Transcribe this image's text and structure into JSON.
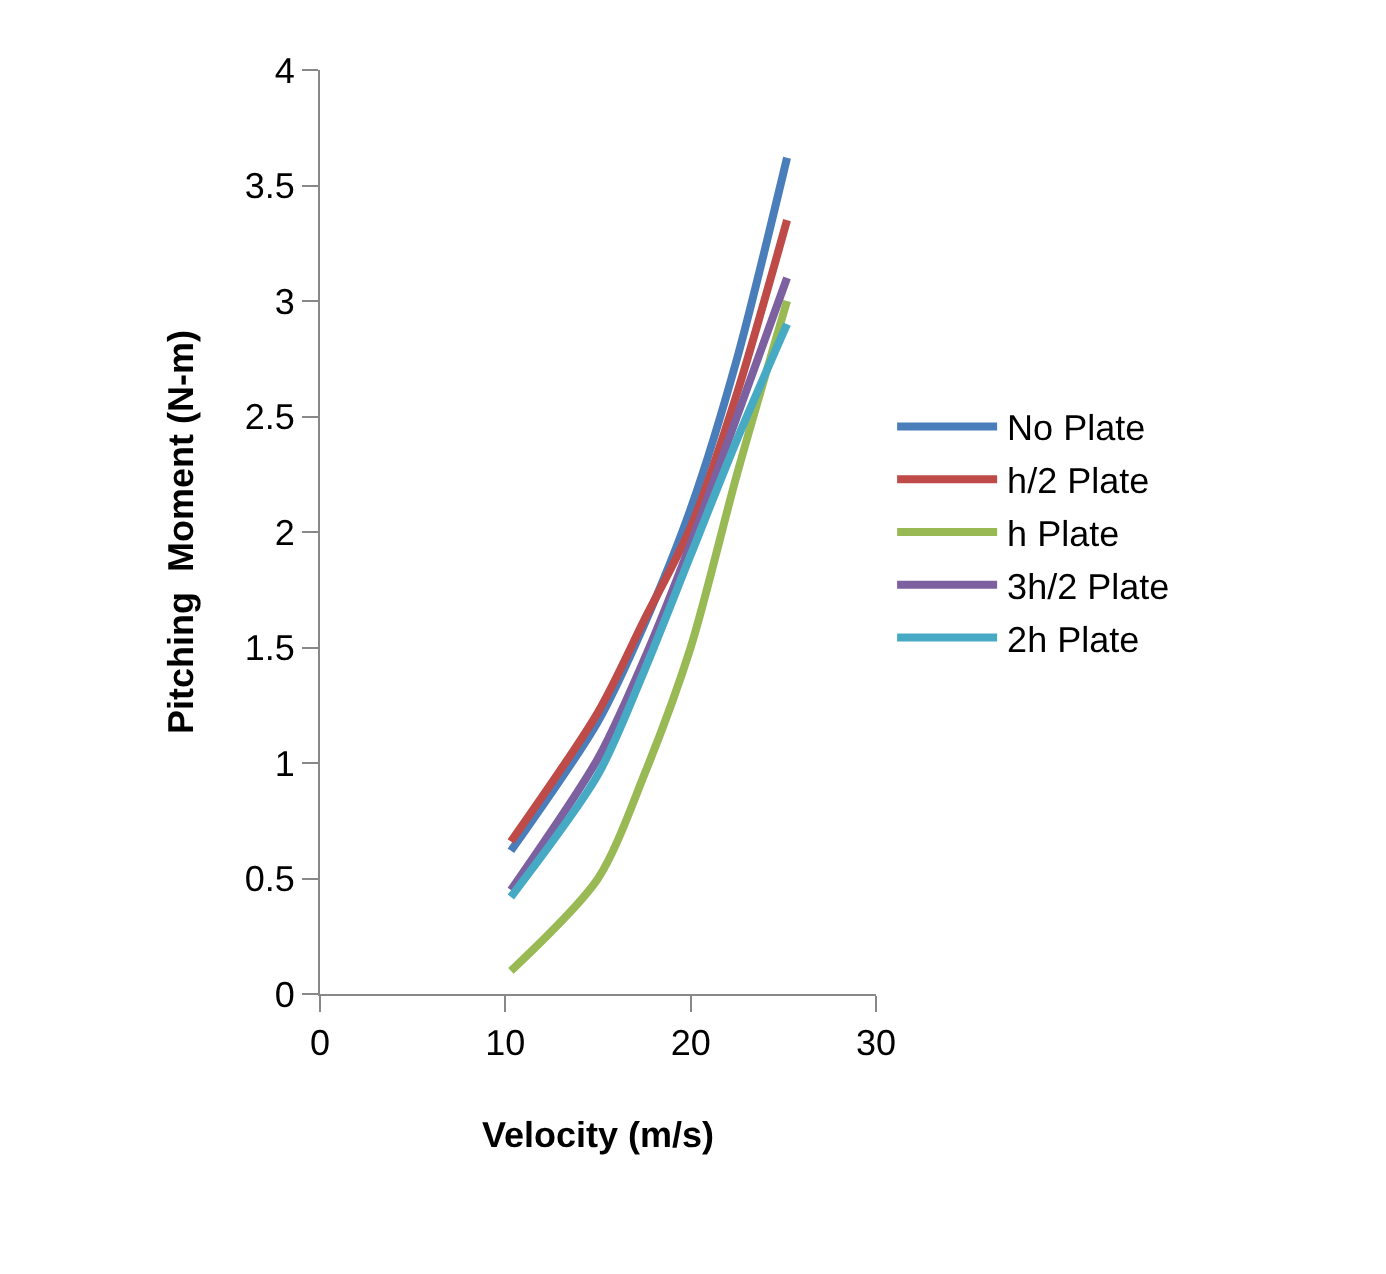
{
  "chart_data": {
    "type": "line",
    "xlabel": "Velocity (m/s)",
    "ylabel": "Pitching  Moment (N-m)",
    "x": [
      10.3,
      15,
      17.5,
      20,
      22.5,
      25.2
    ],
    "series": [
      {
        "name": "No Plate",
        "color": "#4a7ebb",
        "values": [
          0.62,
          1.18,
          1.6,
          2.1,
          2.75,
          3.62
        ]
      },
      {
        "name": "h/2 Plate",
        "color": "#be4b48",
        "values": [
          0.66,
          1.22,
          1.62,
          2.02,
          2.6,
          3.35
        ]
      },
      {
        "name": "h Plate",
        "color": "#98b954",
        "values": [
          0.1,
          0.5,
          0.95,
          1.5,
          2.25,
          3.0
        ]
      },
      {
        "name": "3h/2 Plate",
        "color": "#7d60a0",
        "values": [
          0.45,
          1.02,
          1.45,
          1.95,
          2.5,
          3.1
        ]
      },
      {
        "name": "2h Plate",
        "color": "#46aac5",
        "values": [
          0.42,
          0.95,
          1.4,
          1.9,
          2.4,
          2.9
        ]
      }
    ],
    "xlim": [
      0,
      30
    ],
    "xticks": [
      0,
      10,
      20,
      30
    ],
    "ylim": [
      0,
      4
    ],
    "yticks": [
      0,
      0.5,
      1,
      1.5,
      2,
      2.5,
      3,
      3.5,
      4
    ],
    "grid": false,
    "legend": "right",
    "marker": "none",
    "line_style": "solid"
  }
}
